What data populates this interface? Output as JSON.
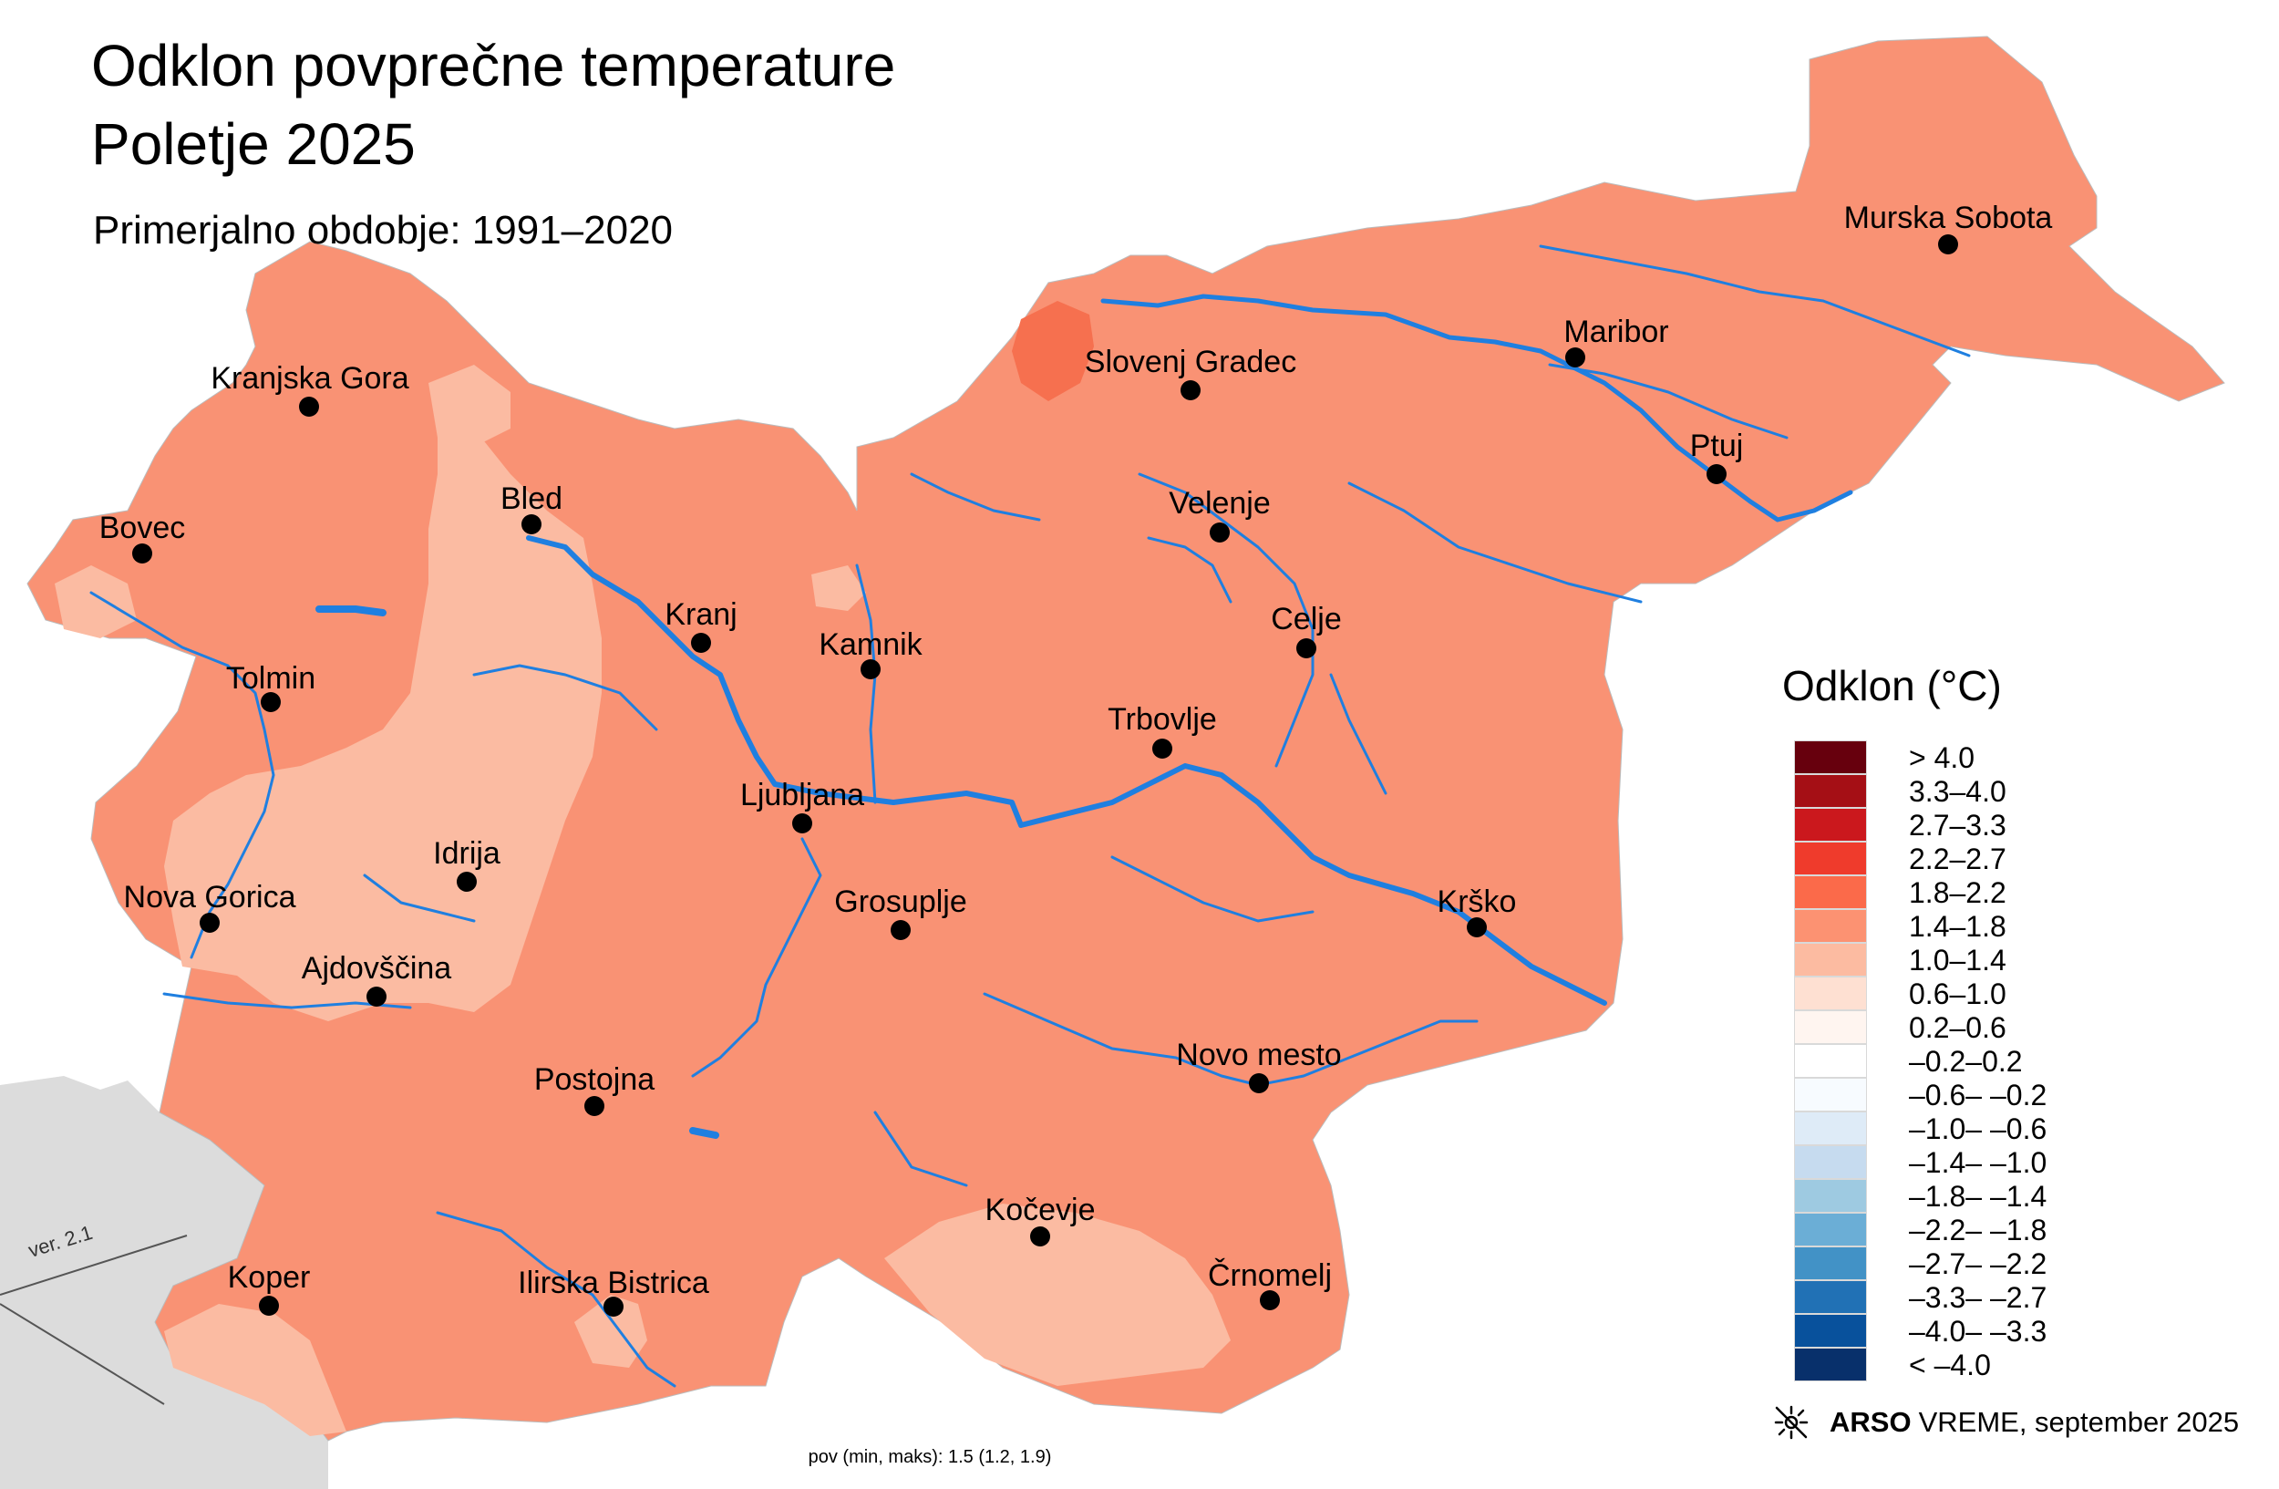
{
  "title": {
    "line1": "Odklon povprečne temperature",
    "line2": "Poletje 2025"
  },
  "subtitle": "Primerjalno obdobje: 1991–2020",
  "legend": {
    "title": "Odklon (°C)",
    "classes": [
      {
        "label": "> 4.0",
        "color": "#67000d"
      },
      {
        "label": "3.3–4.0",
        "color": "#a50f15"
      },
      {
        "label": "2.7–3.3",
        "color": "#cb181d"
      },
      {
        "label": "2.2–2.7",
        "color": "#ef3b2c"
      },
      {
        "label": "1.8–2.2",
        "color": "#fb6a4a"
      },
      {
        "label": "1.4–1.8",
        "color": "#fc9272"
      },
      {
        "label": "1.0–1.4",
        "color": "#fcbba1"
      },
      {
        "label": "0.6–1.0",
        "color": "#fee0d2"
      },
      {
        "label": "0.2–0.6",
        "color": "#fff5f0"
      },
      {
        "label": "–0.2–0.2",
        "color": "#ffffff"
      },
      {
        "label": "–0.6– –0.2",
        "color": "#f7fbff"
      },
      {
        "label": "–1.0– –0.6",
        "color": "#deebf7"
      },
      {
        "label": "–1.4– –1.0",
        "color": "#c6dbef"
      },
      {
        "label": "–1.8– –1.4",
        "color": "#9ecae1"
      },
      {
        "label": "–2.2– –1.8",
        "color": "#6baed6"
      },
      {
        "label": "–2.7– –2.2",
        "color": "#4292c6"
      },
      {
        "label": "–3.3– –2.7",
        "color": "#2171b5"
      },
      {
        "label": "–4.0– –3.3",
        "color": "#08519c"
      },
      {
        "label": "< –4.0",
        "color": "#08306b"
      }
    ]
  },
  "cities": [
    {
      "name": "Murska Sobota"
    },
    {
      "name": "Maribor"
    },
    {
      "name": "Slovenj Gradec"
    },
    {
      "name": "Ptuj"
    },
    {
      "name": "Velenje"
    },
    {
      "name": "Celje"
    },
    {
      "name": "Kranjska Gora"
    },
    {
      "name": "Bled"
    },
    {
      "name": "Bovec"
    },
    {
      "name": "Kranj"
    },
    {
      "name": "Kamnik"
    },
    {
      "name": "Tolmin"
    },
    {
      "name": "Trbovlje"
    },
    {
      "name": "Ljubljana"
    },
    {
      "name": "Idrija"
    },
    {
      "name": "Nova Gorica"
    },
    {
      "name": "Grosuplje"
    },
    {
      "name": "Krško"
    },
    {
      "name": "Ajdovščina"
    },
    {
      "name": "Novo mesto"
    },
    {
      "name": "Postojna"
    },
    {
      "name": "Kočevje"
    },
    {
      "name": "Črnomelj"
    },
    {
      "name": "Koper"
    },
    {
      "name": "Ilirska Bistrica"
    }
  ],
  "footer_stats": "pov (min, maks): 1.5 (1.2, 1.9)",
  "brand": {
    "arso": "ARSO",
    "vreme": "VREME",
    "date": ", september 2025",
    "icon": "sun-icon"
  },
  "version": "ver. 2.1",
  "colors": {
    "main_fill": "#f99274",
    "light_fill": "#fbbba2",
    "dark_fill": "#f6704f",
    "river": "#1f7fe0",
    "neighbor_land": "#dcdcdc"
  }
}
